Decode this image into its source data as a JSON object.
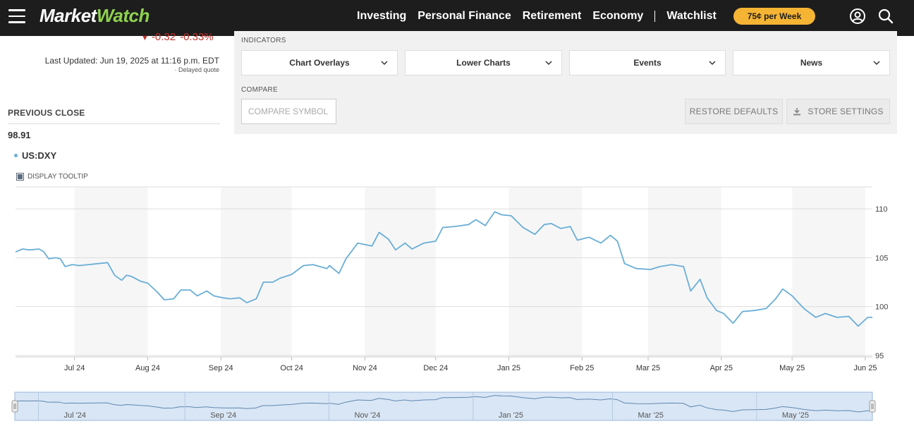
{
  "header": {
    "logo_main": "Market",
    "logo_accent": "Watch",
    "nav": [
      "Investing",
      "Personal Finance",
      "Retirement",
      "Economy",
      "Watchlist"
    ],
    "promo": "75¢ per Week",
    "icons": [
      "hamburger-menu-icon",
      "user-account-icon",
      "search-icon"
    ]
  },
  "quote": {
    "change": "-0.32",
    "change_pct": "-0.33%",
    "change_color": "#c4302b",
    "last_updated": "Last Updated: Jun 19, 2025 at 11:16 p.m. EDT",
    "delayed": "· Delayed quote",
    "previous_close_label": "PREVIOUS CLOSE",
    "previous_close_value": "98.91"
  },
  "controls": {
    "indicators_label": "INDICATORS",
    "dropdowns": [
      "Chart Overlays",
      "Lower Charts",
      "Events",
      "News"
    ],
    "compare_label": "COMPARE",
    "compare_placeholder": "COMPARE SYMBOL",
    "restore_defaults": "RESTORE DEFAULTS",
    "store_settings": "STORE SETTINGS"
  },
  "legend": {
    "symbol": "US:DXY",
    "color": "#6aaed6"
  },
  "tooltip_toggle": {
    "label": "DISPLAY TOOLTIP",
    "checked": true
  },
  "chart_data": {
    "type": "line",
    "title": "",
    "xlabel": "",
    "ylabel": "",
    "ylim": [
      94.85,
      112.25
    ],
    "y_ticks": [
      95,
      100,
      105,
      110
    ],
    "x_tick_labels": [
      "Jul 24",
      "Aug 24",
      "Sep 24",
      "Oct 24",
      "Nov 24",
      "Dec 24",
      "Jan 25",
      "Feb 25",
      "Mar 25",
      "Apr 25",
      "May 25",
      "Jun 25"
    ],
    "x_tick_dates": [
      "2024-07-01",
      "2024-08-01",
      "2024-09-01",
      "2024-10-01",
      "2024-11-01",
      "2024-12-01",
      "2025-01-01",
      "2025-02-01",
      "2025-03-01",
      "2025-04-01",
      "2025-05-01",
      "2025-06-01"
    ],
    "series": [
      {
        "name": "US:DXY",
        "color": "#6aaed6",
        "x": [
          "2024-06-21",
          "2024-06-24",
          "2024-06-27",
          "2024-07-01",
          "2024-07-03",
          "2024-07-05",
          "2024-07-08",
          "2024-07-10",
          "2024-07-12",
          "2024-07-15",
          "2024-07-18",
          "2024-07-22",
          "2024-07-26",
          "2024-07-30",
          "2024-08-02",
          "2024-08-05",
          "2024-08-07",
          "2024-08-09",
          "2024-08-13",
          "2024-08-16",
          "2024-08-20",
          "2024-08-23",
          "2024-08-27",
          "2024-08-30",
          "2024-09-03",
          "2024-09-06",
          "2024-09-10",
          "2024-09-13",
          "2024-09-17",
          "2024-09-20",
          "2024-09-24",
          "2024-09-27",
          "2024-10-01",
          "2024-10-04",
          "2024-10-08",
          "2024-10-11",
          "2024-10-16",
          "2024-10-21",
          "2024-10-25",
          "2024-10-31",
          "2024-11-01",
          "2024-11-05",
          "2024-11-08",
          "2024-11-13",
          "2024-11-15",
          "2024-11-19",
          "2024-11-22",
          "2024-11-26",
          "2024-11-29",
          "2024-12-03",
          "2024-12-06",
          "2024-12-11",
          "2024-12-16",
          "2024-12-19",
          "2024-12-24",
          "2024-12-30",
          "2025-01-02",
          "2025-01-06",
          "2025-01-10",
          "2025-01-13",
          "2025-01-17",
          "2025-01-22",
          "2025-01-27",
          "2025-01-31",
          "2025-02-03",
          "2025-02-07",
          "2025-02-11",
          "2025-02-14",
          "2025-02-19",
          "2025-02-24",
          "2025-02-28",
          "2025-03-03",
          "2025-03-06",
          "2025-03-11",
          "2025-03-17",
          "2025-03-21",
          "2025-03-26",
          "2025-03-31",
          "2025-04-03",
          "2025-04-07",
          "2025-04-10",
          "2025-04-14",
          "2025-04-17",
          "2025-04-21",
          "2025-04-25",
          "2025-04-30",
          "2025-05-05",
          "2025-05-09",
          "2025-05-12",
          "2025-05-16",
          "2025-05-21",
          "2025-05-26",
          "2025-05-30",
          "2025-06-04",
          "2025-06-09",
          "2025-06-13",
          "2025-06-17",
          "2025-06-19"
        ],
        "values": [
          105.6,
          105.9,
          105.8,
          105.9,
          105.6,
          104.9,
          105.0,
          104.9,
          104.1,
          104.3,
          104.2,
          104.3,
          104.4,
          104.5,
          103.2,
          102.7,
          103.2,
          103.1,
          102.6,
          102.4,
          101.5,
          100.7,
          100.8,
          101.7,
          101.7,
          101.1,
          101.6,
          101.1,
          100.9,
          100.8,
          100.9,
          100.4,
          100.8,
          102.5,
          102.5,
          102.9,
          103.3,
          104.2,
          104.3,
          103.9,
          104.2,
          103.4,
          104.9,
          106.5,
          106.4,
          106.2,
          107.6,
          106.9,
          105.8,
          106.5,
          105.9,
          106.5,
          106.7,
          108.1,
          108.2,
          108.4,
          108.9,
          108.3,
          109.7,
          109.4,
          109.3,
          108.1,
          107.4,
          108.4,
          108.5,
          108.0,
          108.2,
          106.8,
          107.1,
          106.5,
          107.3,
          106.7,
          104.4,
          103.9,
          103.8,
          104.1,
          104.3,
          104.1,
          101.6,
          102.8,
          100.9,
          99.6,
          99.3,
          98.3,
          99.5,
          99.6,
          99.8,
          100.8,
          101.8,
          101.1,
          99.8,
          98.9,
          99.3,
          98.9,
          99.0,
          98.0,
          98.9,
          98.9
        ]
      }
    ],
    "navigator_labels": [
      "Jul '24",
      "Sep '24",
      "Nov '24",
      "Jan '25",
      "Mar '25",
      "May '25"
    ],
    "navigator_dates": [
      "2024-07-01",
      "2024-09-01",
      "2024-11-01",
      "2025-01-01",
      "2025-03-01",
      "2025-05-01"
    ],
    "grid": true,
    "alternating_month_bands": true,
    "y_axis_position": "right"
  }
}
